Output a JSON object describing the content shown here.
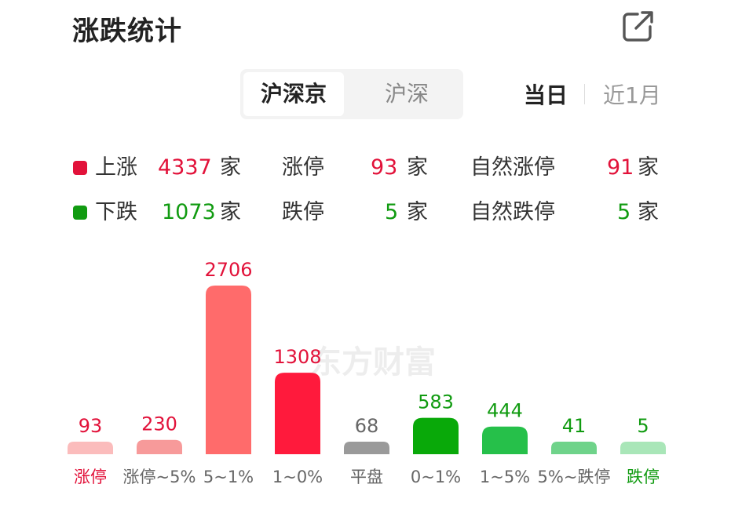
{
  "header": {
    "title": "涨跌统计",
    "export_icon": "external-link-icon"
  },
  "tabs": {
    "market": [
      "沪深京",
      "沪深"
    ],
    "market_selected": "沪深京",
    "period": [
      "当日",
      "近1月"
    ],
    "period_selected": "当日"
  },
  "summary": {
    "rows": [
      {
        "dot_color": "#e2123a",
        "label": "上涨",
        "count": "4337",
        "unit": "家",
        "limit_label": "涨停",
        "limit_count": "93",
        "limit_unit": "家",
        "natural_label": "自然涨停",
        "natural_count": "91",
        "natural_unit": "家"
      },
      {
        "dot_color": "#119b11",
        "label": "下跌",
        "count": "1073",
        "unit": "家",
        "limit_label": "跌停",
        "limit_count": "5",
        "limit_unit": "家",
        "natural_label": "自然跌停",
        "natural_count": "5",
        "natural_unit": "家"
      }
    ]
  },
  "watermark": "东方财富",
  "chart_data": {
    "type": "bar",
    "categories": [
      "涨停",
      "涨停~5%",
      "5~1%",
      "1~0%",
      "平盘",
      "0~1%",
      "1~5%",
      "5%~跌停",
      "跌停"
    ],
    "values": [
      93,
      230,
      2706,
      1308,
      68,
      583,
      444,
      41,
      5
    ],
    "bar_colors": [
      "#fbbcbc",
      "#f79a9a",
      "#ff6b6b",
      "#ff1a3c",
      "#9a9a9a",
      "#09a909",
      "#26c04a",
      "#6fd38a",
      "#a9e6b8"
    ],
    "value_colors": [
      "#e2123a",
      "#e2123a",
      "#e2123a",
      "#e2123a",
      "#666666",
      "#119b11",
      "#119b11",
      "#119b11",
      "#119b11"
    ],
    "label_colors": [
      "#e2123a",
      "#666666",
      "#666666",
      "#666666",
      "#666666",
      "#666666",
      "#666666",
      "#666666",
      "#119b11"
    ],
    "title": "",
    "xlabel": "",
    "ylabel": "",
    "grid": false
  }
}
